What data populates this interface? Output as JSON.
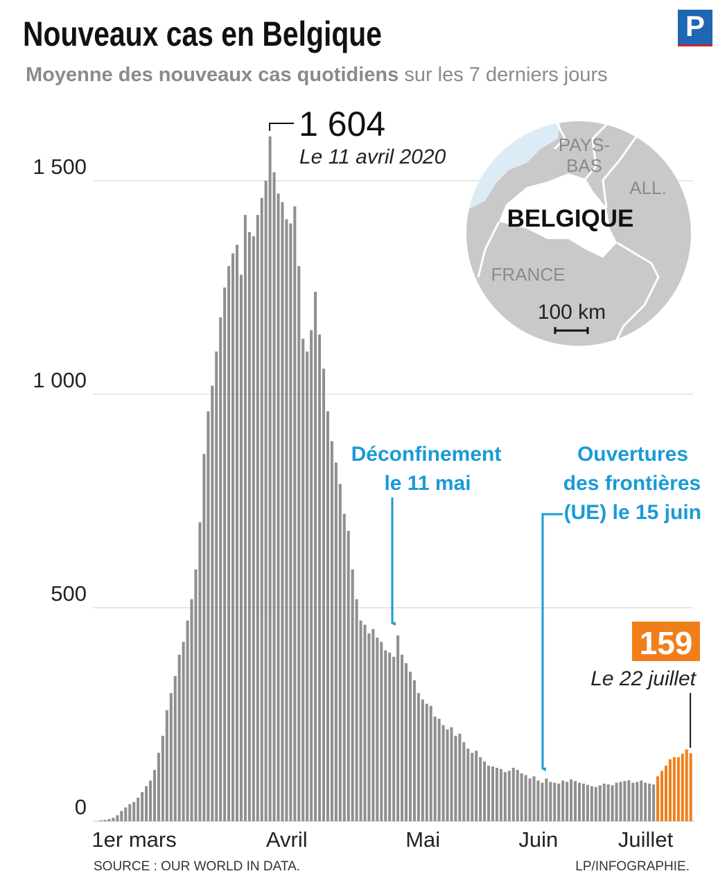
{
  "chart_data": {
    "type": "bar",
    "title": "Nouveaux cas en Belgique",
    "subtitle_bold": "Moyenne des nouveaux cas quotidiens",
    "subtitle": "sur les 7 derniers jours",
    "categories": [
      null,
      null,
      null,
      null,
      null,
      null,
      null,
      null,
      "1er mars",
      null,
      null,
      null,
      null,
      null,
      null,
      null,
      null,
      null,
      null,
      null,
      null,
      null,
      null,
      null,
      null,
      null,
      null,
      null,
      null,
      null,
      null,
      null,
      null,
      null,
      null,
      null,
      null,
      null,
      null,
      null,
      null,
      null,
      null,
      null,
      null,
      "Avril",
      null,
      null,
      null,
      null,
      null,
      null,
      null,
      null,
      null,
      null,
      null,
      null,
      null,
      null,
      null,
      null,
      null,
      null,
      null,
      null,
      null,
      null,
      null,
      null,
      null,
      null,
      null,
      null,
      null,
      null,
      null,
      null,
      "Mai",
      null,
      null,
      null,
      null,
      null,
      null,
      null,
      null,
      null,
      null,
      null,
      null,
      null,
      null,
      null,
      null,
      null,
      null,
      null,
      null,
      null,
      null,
      null,
      null,
      null,
      null,
      null,
      "Juin",
      null,
      null,
      null,
      null,
      null,
      null,
      null,
      null,
      null,
      null,
      null,
      null,
      null,
      null,
      null,
      null,
      null,
      null,
      null,
      null,
      null,
      null,
      null,
      null,
      null,
      "Juillet",
      null,
      null,
      null,
      null,
      null,
      null,
      null,
      null,
      null,
      null,
      null
    ],
    "series": [
      {
        "color": "#8f8f8f",
        "values": [
          2,
          3,
          5,
          8,
          14,
          24,
          32,
          40,
          45,
          55,
          68,
          82,
          95,
          120,
          160,
          200,
          260,
          300,
          340,
          390,
          420,
          470,
          520,
          590,
          700,
          860,
          960,
          1020,
          1100,
          1180,
          1250,
          1300,
          1330,
          1350,
          1280,
          1420,
          1380,
          1370,
          1420,
          1460,
          1500,
          1604,
          1520,
          1470,
          1450,
          1410,
          1400,
          1440,
          1300,
          1130,
          1100,
          1150,
          1240,
          1140,
          1060,
          960,
          890,
          840,
          790,
          720,
          680,
          590,
          520,
          470,
          460,
          440,
          450,
          430,
          420,
          400,
          395,
          385,
          435,
          390,
          370,
          350,
          330,
          300,
          285,
          275,
          270,
          245,
          240,
          225,
          215,
          220,
          200,
          205,
          185,
          170,
          160,
          165,
          150,
          140,
          130,
          128,
          125,
          122,
          115,
          118,
          125,
          120,
          112,
          108,
          100,
          105,
          95,
          90,
          100,
          92,
          90,
          88,
          95,
          92,
          98,
          94,
          90,
          88,
          85,
          82,
          80,
          84,
          88,
          86,
          84,
          90,
          92,
          94,
          96,
          90,
          92,
          95,
          90,
          88,
          86,
          null,
          null,
          null,
          null,
          null,
          null,
          null,
          null,
          null
        ],
        "value_labels": [
          null,
          null,
          null,
          null,
          null,
          null,
          null,
          null,
          null,
          null,
          null,
          null,
          null,
          null,
          null,
          null,
          null,
          null,
          null,
          null,
          null,
          null,
          null,
          null,
          null,
          null,
          null,
          null,
          null,
          null,
          null,
          null,
          null,
          null,
          null,
          null,
          null,
          null,
          null,
          null,
          null,
          "1 604",
          null,
          null,
          null,
          null,
          null,
          null,
          null,
          null,
          null,
          null,
          null,
          null,
          null,
          null,
          null,
          null,
          null,
          null,
          null,
          null,
          null,
          null,
          null,
          null,
          null,
          null,
          null,
          null,
          null,
          null,
          null,
          null,
          null,
          null,
          null,
          null,
          null,
          null,
          null,
          null,
          null,
          null,
          null,
          null,
          null,
          null,
          null,
          null,
          null,
          null,
          null,
          null,
          null,
          null,
          null,
          null,
          null,
          null,
          null,
          null,
          null,
          null,
          null,
          null,
          null,
          null,
          null,
          null,
          null,
          null,
          null,
          null,
          null,
          null,
          null,
          null,
          null,
          null,
          null,
          null,
          null,
          null,
          null,
          null,
          null,
          null,
          null,
          null,
          null,
          null,
          null,
          null,
          null,
          null,
          null,
          null,
          null,
          null,
          null,
          null,
          null,
          null
        ]
      },
      {
        "color": "#f07f1a",
        "values": [
          null,
          null,
          null,
          null,
          null,
          null,
          null,
          null,
          null,
          null,
          null,
          null,
          null,
          null,
          null,
          null,
          null,
          null,
          null,
          null,
          null,
          null,
          null,
          null,
          null,
          null,
          null,
          null,
          null,
          null,
          null,
          null,
          null,
          null,
          null,
          null,
          null,
          null,
          null,
          null,
          null,
          null,
          null,
          null,
          null,
          null,
          null,
          null,
          null,
          null,
          null,
          null,
          null,
          null,
          null,
          null,
          null,
          null,
          null,
          null,
          null,
          null,
          null,
          null,
          null,
          null,
          null,
          null,
          null,
          null,
          null,
          null,
          null,
          null,
          null,
          null,
          null,
          null,
          null,
          null,
          null,
          null,
          null,
          null,
          null,
          null,
          null,
          null,
          null,
          null,
          null,
          null,
          null,
          null,
          null,
          null,
          null,
          null,
          null,
          null,
          null,
          null,
          null,
          null,
          null,
          null,
          null,
          null,
          null,
          null,
          null,
          null,
          null,
          null,
          null,
          null,
          null,
          null,
          null,
          null,
          null,
          null,
          null,
          null,
          null,
          null,
          null,
          null,
          null,
          null,
          null,
          null,
          null,
          null,
          null,
          105,
          118,
          130,
          145,
          150,
          150,
          158,
          168,
          159
        ]
      }
    ],
    "ylim": [
      0,
      1680
    ],
    "yticks": [
      0,
      500,
      {
        "value": 1000,
        "label": "1 000"
      },
      {
        "value": 1500,
        "label": "1 500"
      }
    ],
    "grid": true,
    "peak_date": "Le 11 avril 2020",
    "last_date": "Le 22 juillet",
    "annotations": [
      {
        "lines": [
          "Déconfinement",
          "le 11 mai"
        ]
      },
      {
        "lines": [
          "Ouvertures",
          "des frontières",
          "(UE) le 15 juin"
        ]
      }
    ],
    "source": "SOURCE : OUR WORLD IN DATA.",
    "credit": "LP/INFOGRAPHIE."
  },
  "map": {
    "pays_bas": [
      "PAYS-",
      "BAS"
    ],
    "allemagne": "ALL.",
    "belgique": "BELGIQUE",
    "france": "FRANCE",
    "scale": "100 km"
  },
  "logo": "P"
}
